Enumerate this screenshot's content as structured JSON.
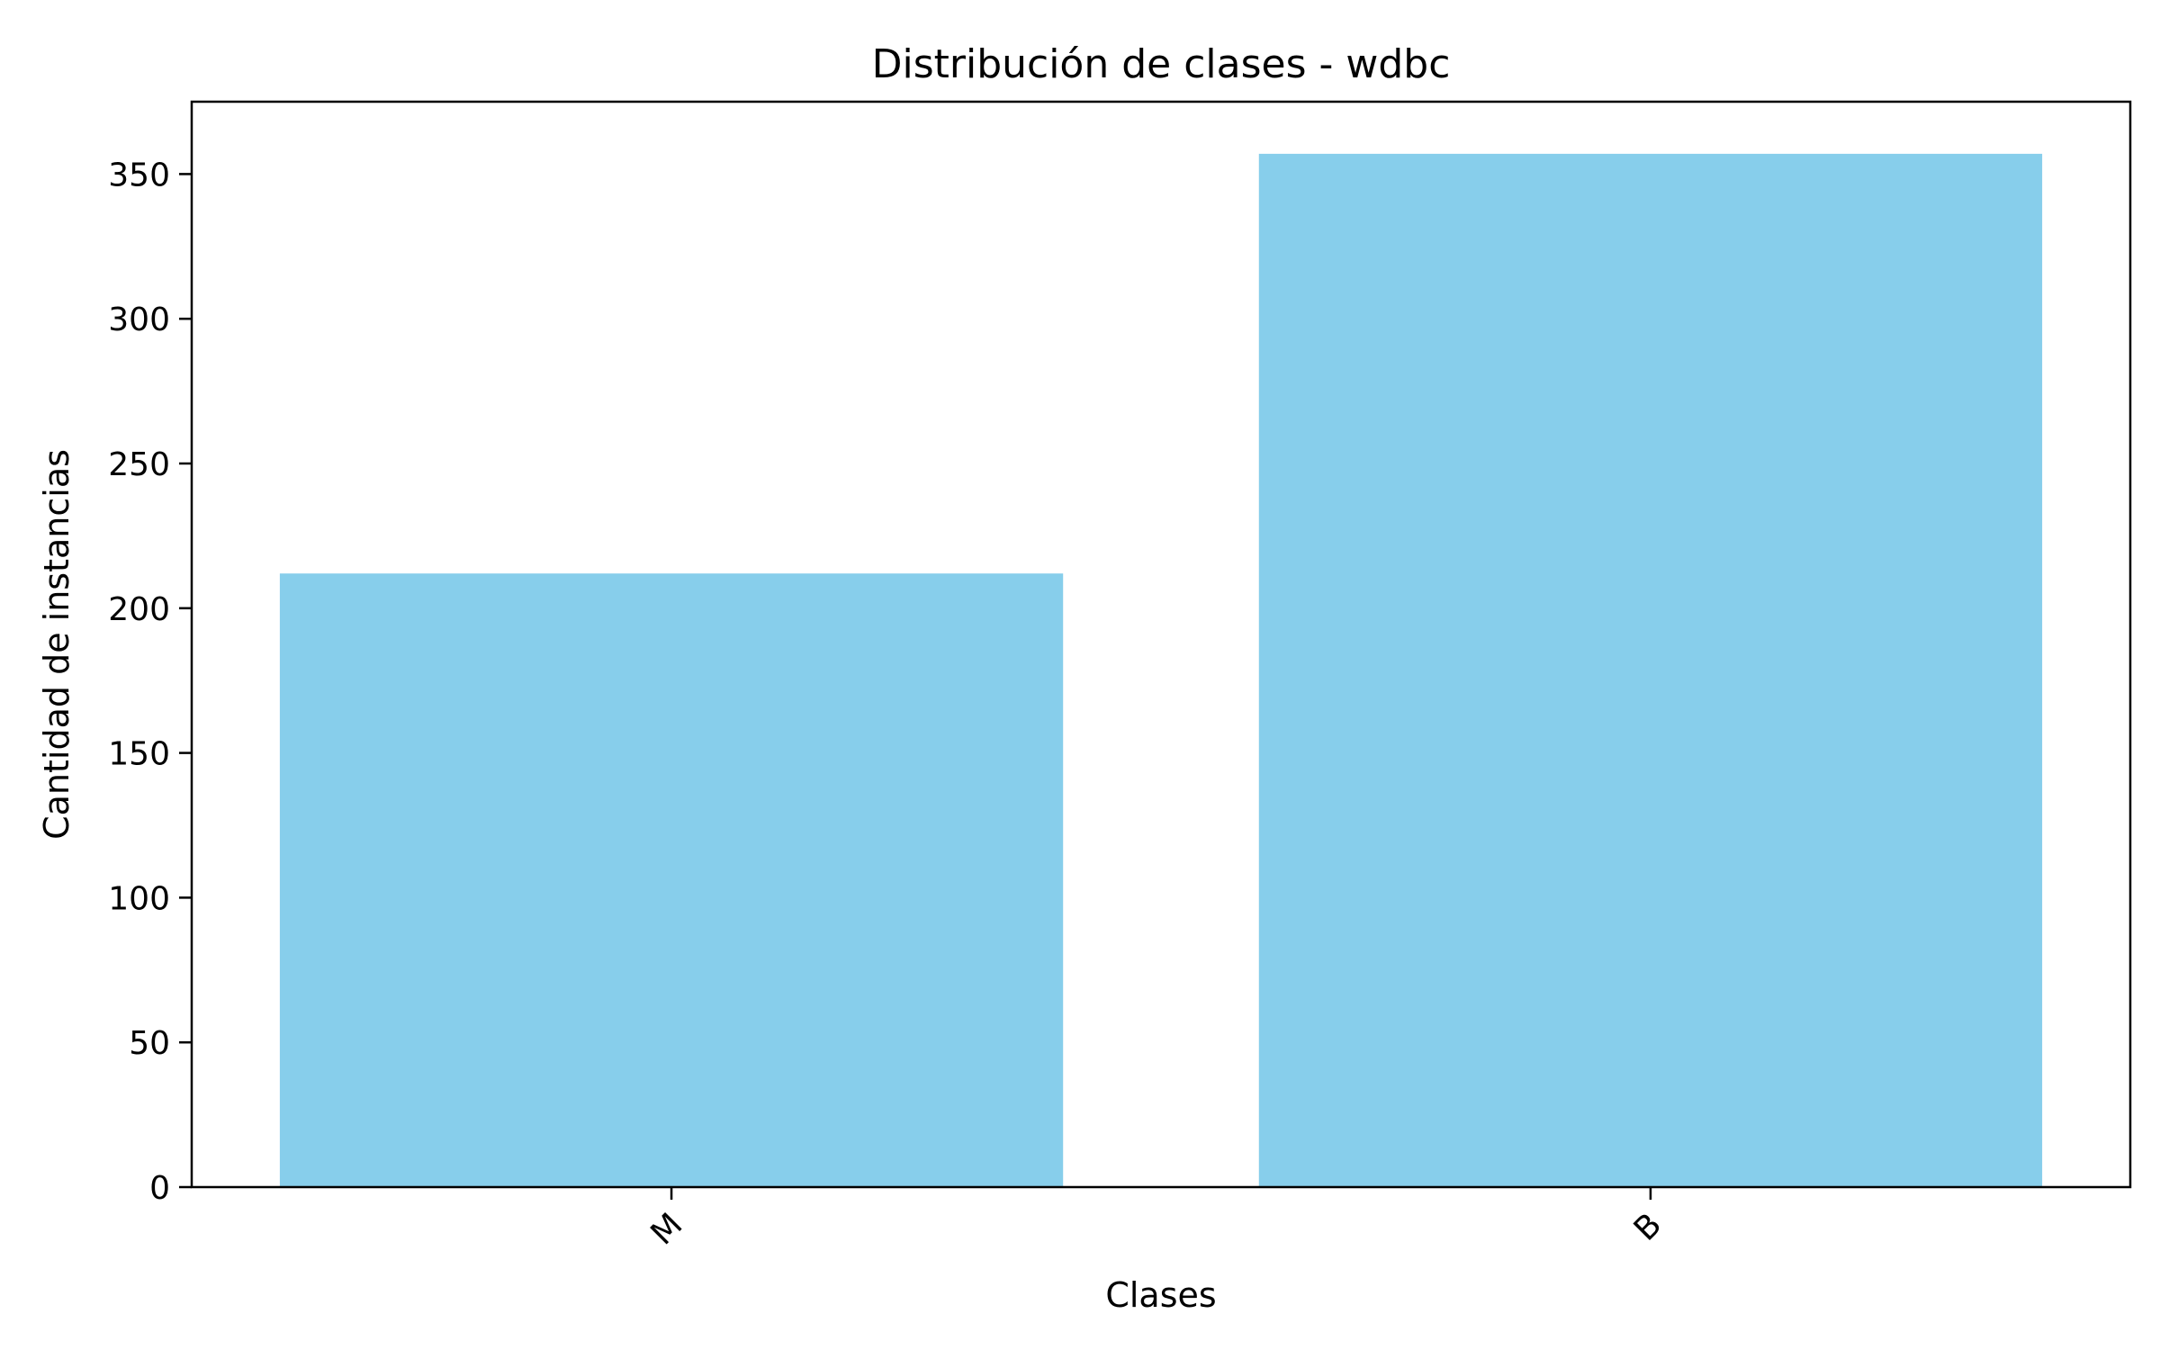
{
  "chart_data": {
    "type": "bar",
    "title": "Distribución de clases - wdbc",
    "xlabel": "Clases",
    "ylabel": "Cantidad de instancias",
    "categories": [
      "M",
      "B"
    ],
    "values": [
      212,
      357
    ],
    "ylim": [
      0,
      375
    ],
    "yticks": [
      0,
      50,
      100,
      150,
      200,
      250,
      300,
      350
    ],
    "bar_color": "#87CEEB",
    "grid": false,
    "x_tick_rotation_deg": 45
  }
}
